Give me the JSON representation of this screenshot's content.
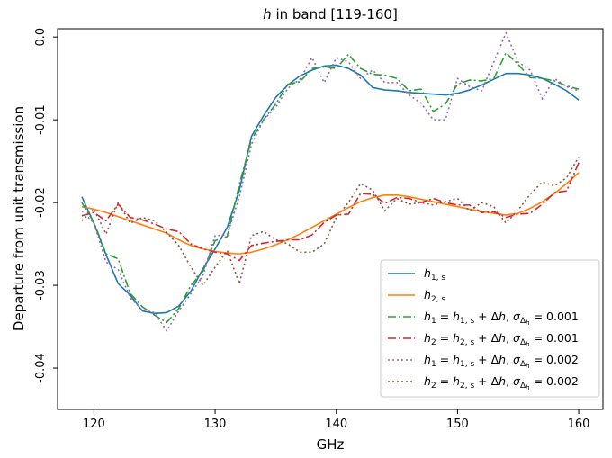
{
  "chart_data": {
    "type": "line",
    "title_prefix": "h",
    "title_suffix": " in band [119-160]",
    "xlabel": "GHz",
    "ylabel": "Departure from unit transmission",
    "xlim": [
      117.0,
      162.0
    ],
    "ylim": [
      -0.045,
      0.001
    ],
    "xticks": [
      120,
      130,
      140,
      150,
      160
    ],
    "yticks": [
      0.0,
      -0.01,
      -0.02,
      -0.03,
      -0.04
    ],
    "ytick_labels": [
      "0.0",
      "-0.01",
      "-0.02",
      "-0.03",
      "-0.04"
    ],
    "grid": false,
    "legend_placement": "lower-right",
    "series": [
      {
        "legend": [
          "h",
          "1, s",
          "",
          "",
          "",
          ""
        ],
        "color": "#1f77b4",
        "dash": "",
        "width": 1.6,
        "x": [
          119,
          120,
          121,
          122,
          123,
          124,
          125,
          126,
          127,
          128,
          129,
          130,
          131,
          132,
          133,
          134,
          135,
          136,
          137,
          138,
          139,
          140,
          141,
          142,
          143,
          144,
          145,
          146,
          147,
          148,
          149,
          150,
          151,
          152,
          153,
          154,
          155,
          156,
          157,
          158,
          159,
          160
        ],
        "y": [
          -0.0193,
          -0.0225,
          -0.0263,
          -0.0298,
          -0.0312,
          -0.0331,
          -0.0334,
          -0.0333,
          -0.0325,
          -0.0307,
          -0.028,
          -0.0256,
          -0.023,
          -0.0185,
          -0.012,
          -0.0095,
          -0.0073,
          -0.0058,
          -0.0047,
          -0.004,
          -0.0035,
          -0.0034,
          -0.0038,
          -0.0046,
          -0.0061,
          -0.0064,
          -0.0065,
          -0.0067,
          -0.0068,
          -0.0069,
          -0.007,
          -0.0068,
          -0.0064,
          -0.0058,
          -0.0051,
          -0.0044,
          -0.0044,
          -0.0046,
          -0.005,
          -0.0057,
          -0.0065,
          -0.0076
        ]
      },
      {
        "legend": [
          "h",
          "2, s",
          "",
          "",
          "",
          ""
        ],
        "color": "#ff7f0e",
        "dash": "",
        "width": 1.6,
        "x": [
          119,
          120,
          121,
          122,
          123,
          124,
          125,
          126,
          127,
          128,
          129,
          130,
          131,
          132,
          133,
          134,
          135,
          136,
          137,
          138,
          139,
          140,
          141,
          142,
          143,
          144,
          145,
          146,
          147,
          148,
          149,
          150,
          151,
          152,
          153,
          154,
          155,
          156,
          157,
          158,
          159,
          160
        ],
        "y": [
          -0.0205,
          -0.0208,
          -0.0212,
          -0.0217,
          -0.0222,
          -0.0227,
          -0.0232,
          -0.0237,
          -0.0245,
          -0.0252,
          -0.0256,
          -0.0259,
          -0.0261,
          -0.0262,
          -0.026,
          -0.0256,
          -0.0251,
          -0.0245,
          -0.0238,
          -0.023,
          -0.0222,
          -0.0214,
          -0.0206,
          -0.0199,
          -0.0194,
          -0.0191,
          -0.0191,
          -0.0193,
          -0.0196,
          -0.0199,
          -0.0202,
          -0.0205,
          -0.0208,
          -0.0211,
          -0.0213,
          -0.0215,
          -0.0213,
          -0.0207,
          -0.0199,
          -0.0189,
          -0.0177,
          -0.0164
        ]
      },
      {
        "legend": [
          "h",
          "1",
          "h",
          "1, s",
          "σ",
          "0.001"
        ],
        "color": "#2ca02c",
        "dash": "9,3,2,3",
        "width": 1.6,
        "x": [
          119,
          120,
          121,
          122,
          123,
          124,
          125,
          126,
          127,
          128,
          129,
          130,
          131,
          132,
          133,
          134,
          135,
          136,
          137,
          138,
          139,
          140,
          141,
          142,
          143,
          144,
          145,
          146,
          147,
          148,
          149,
          150,
          151,
          152,
          153,
          154,
          155,
          156,
          157,
          158,
          159,
          160
        ],
        "y": [
          -0.02,
          -0.0224,
          -0.0262,
          -0.0268,
          -0.031,
          -0.0326,
          -0.0336,
          -0.0345,
          -0.0328,
          -0.03,
          -0.0283,
          -0.0246,
          -0.0241,
          -0.0178,
          -0.0124,
          -0.01,
          -0.0081,
          -0.0057,
          -0.0054,
          -0.0038,
          -0.0036,
          -0.0038,
          -0.0021,
          -0.0038,
          -0.0045,
          -0.0046,
          -0.005,
          -0.0065,
          -0.0063,
          -0.009,
          -0.0081,
          -0.0057,
          -0.0052,
          -0.0053,
          -0.005,
          -0.0019,
          -0.0033,
          -0.0049,
          -0.005,
          -0.0053,
          -0.0059,
          -0.0063
        ]
      },
      {
        "legend": [
          "h",
          "2",
          "h",
          "2, s",
          "σ",
          "0.001"
        ],
        "color": "#d62728",
        "dash": "9,3,2,3",
        "width": 1.6,
        "x": [
          119,
          120,
          121,
          122,
          123,
          124,
          125,
          126,
          127,
          128,
          129,
          130,
          131,
          132,
          133,
          134,
          135,
          136,
          137,
          138,
          139,
          140,
          141,
          142,
          143,
          144,
          145,
          146,
          147,
          148,
          149,
          150,
          151,
          152,
          153,
          154,
          155,
          156,
          157,
          158,
          159,
          160
        ],
        "y": [
          -0.0216,
          -0.0212,
          -0.0222,
          -0.0202,
          -0.0218,
          -0.0221,
          -0.0226,
          -0.0232,
          -0.0235,
          -0.025,
          -0.0256,
          -0.026,
          -0.0262,
          -0.027,
          -0.0252,
          -0.0249,
          -0.0247,
          -0.0245,
          -0.0245,
          -0.0239,
          -0.0224,
          -0.0215,
          -0.0214,
          -0.0189,
          -0.019,
          -0.0201,
          -0.0194,
          -0.0195,
          -0.02,
          -0.0195,
          -0.02,
          -0.0203,
          -0.0203,
          -0.0212,
          -0.0211,
          -0.0218,
          -0.0214,
          -0.0213,
          -0.0202,
          -0.0188,
          -0.0186,
          -0.0152
        ]
      },
      {
        "legend": [
          "h",
          "1",
          "h",
          "1, s",
          "σ",
          "0.002"
        ],
        "color": "#9467bd",
        "dash": "2,3",
        "width": 1.6,
        "x": [
          119,
          120,
          121,
          122,
          123,
          124,
          125,
          126,
          127,
          128,
          129,
          130,
          131,
          132,
          133,
          134,
          135,
          136,
          137,
          138,
          139,
          140,
          141,
          142,
          143,
          144,
          145,
          146,
          147,
          148,
          149,
          150,
          151,
          152,
          153,
          154,
          155,
          156,
          157,
          158,
          159,
          160
        ],
        "y": [
          -0.021,
          -0.0225,
          -0.0272,
          -0.0281,
          -0.0315,
          -0.033,
          -0.0333,
          -0.0355,
          -0.0331,
          -0.031,
          -0.0288,
          -0.024,
          -0.0239,
          -0.0193,
          -0.013,
          -0.01,
          -0.0085,
          -0.0062,
          -0.0051,
          -0.0025,
          -0.0055,
          -0.0025,
          -0.003,
          -0.005,
          -0.004,
          -0.0055,
          -0.0055,
          -0.007,
          -0.008,
          -0.01,
          -0.01,
          -0.005,
          -0.006,
          -0.0065,
          -0.003,
          0.0005,
          -0.003,
          -0.004,
          -0.0075,
          -0.005,
          -0.006,
          -0.0065
        ]
      },
      {
        "legend": [
          "h",
          "2",
          "h",
          "2, s",
          "σ",
          "0.002"
        ],
        "color": "#8c564b",
        "dash": "2,3",
        "width": 1.6,
        "x": [
          119,
          120,
          121,
          122,
          123,
          124,
          125,
          126,
          127,
          128,
          129,
          130,
          131,
          132,
          133,
          134,
          135,
          136,
          137,
          138,
          139,
          140,
          141,
          142,
          143,
          144,
          145,
          146,
          147,
          148,
          149,
          150,
          151,
          152,
          153,
          154,
          155,
          156,
          157,
          158,
          159,
          160
        ],
        "y": [
          -0.0222,
          -0.0208,
          -0.0238,
          -0.02,
          -0.0225,
          -0.0218,
          -0.0222,
          -0.0236,
          -0.0252,
          -0.0278,
          -0.03,
          -0.0278,
          -0.0258,
          -0.0298,
          -0.024,
          -0.0235,
          -0.0245,
          -0.025,
          -0.026,
          -0.026,
          -0.025,
          -0.0218,
          -0.02,
          -0.0177,
          -0.0185,
          -0.021,
          -0.0195,
          -0.0202,
          -0.02,
          -0.0203,
          -0.0199,
          -0.0195,
          -0.021,
          -0.02,
          -0.0205,
          -0.0225,
          -0.0209,
          -0.019,
          -0.0175,
          -0.018,
          -0.017,
          -0.0145
        ]
      }
    ]
  }
}
